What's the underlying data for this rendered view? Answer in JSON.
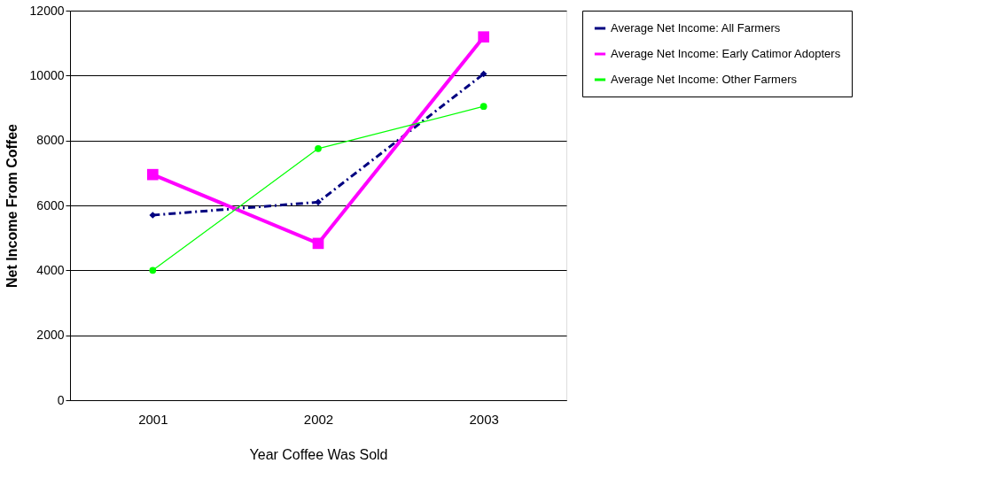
{
  "chart_data": {
    "type": "line",
    "xlabel": "Year Coffee Was Sold",
    "ylabel": "Net Income From Coffee",
    "categories": [
      "2001",
      "2002",
      "2003"
    ],
    "series": [
      {
        "name": "Average Net Income: All Farmers",
        "color": "#000080",
        "values": [
          5700,
          6100,
          10050
        ],
        "marker": "diamond",
        "line_style": "dashed"
      },
      {
        "name": "Average Net Income: Early Catimor Adopters",
        "color": "#ff00ff",
        "values": [
          6950,
          4830,
          11190
        ],
        "marker": "square",
        "line_style": "solid"
      },
      {
        "name": "Average Net Income: Other Farmers",
        "color": "#00ff00",
        "values": [
          4000,
          7750,
          9050
        ],
        "marker": "circle",
        "line_style": "solid"
      }
    ],
    "ylim": [
      0,
      12000
    ],
    "yticks": [
      0,
      2000,
      4000,
      6000,
      8000,
      10000,
      12000
    ],
    "grid": "y",
    "legend": "right"
  }
}
